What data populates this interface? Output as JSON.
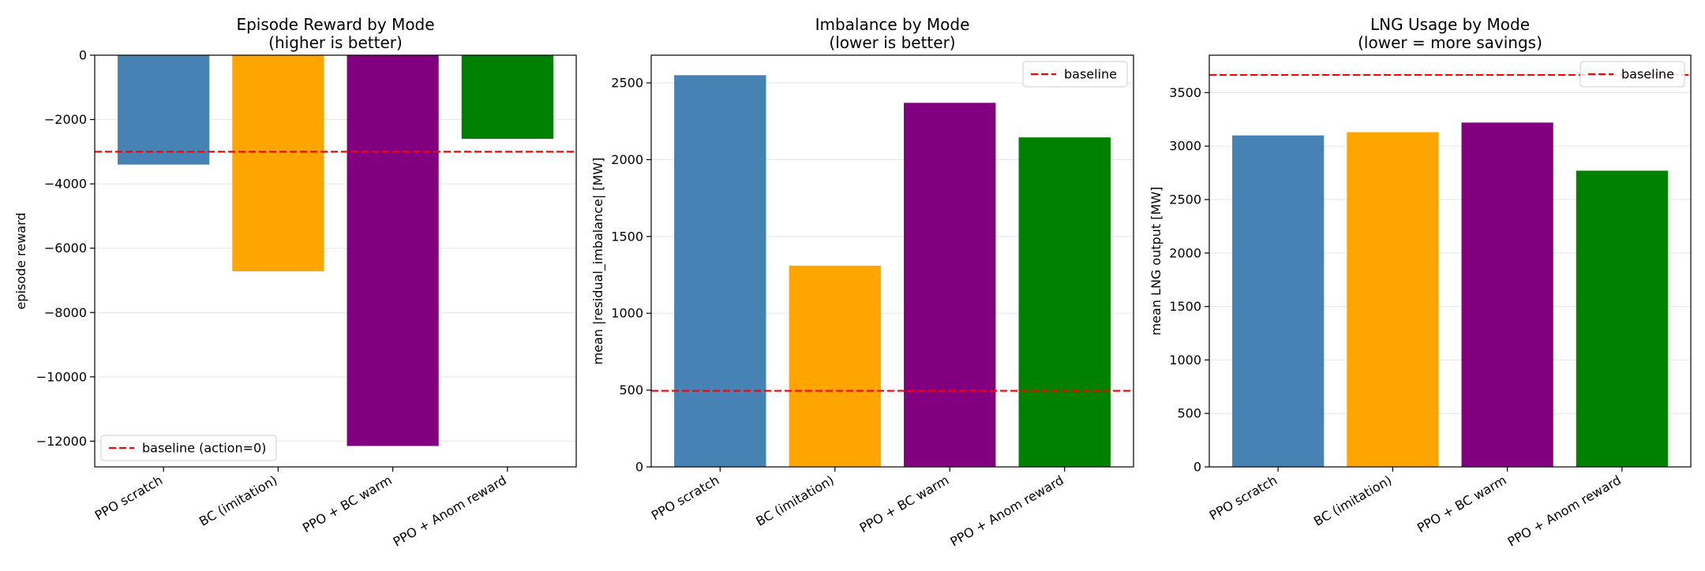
{
  "chart_data": [
    {
      "type": "bar",
      "title": "Episode Reward by Mode",
      "subtitle": "(higher is better)",
      "xlabel": "",
      "ylabel": "episode reward",
      "categories": [
        "PPO scratch",
        "BC (imitation)",
        "PPO + BC warm",
        "PPO + Anom reward"
      ],
      "values": [
        -3400,
        -6720,
        -12150,
        -2600
      ],
      "colors": [
        "#4682b4",
        "#ffa500",
        "#800080",
        "#008000"
      ],
      "ylim": [
        -12800,
        0
      ],
      "yticks": [
        0,
        -2000,
        -4000,
        -6000,
        -8000,
        -10000,
        -12000
      ],
      "ytick_labels": [
        "0",
        "−2000",
        "−4000",
        "−6000",
        "−8000",
        "−10000",
        "−12000"
      ],
      "baseline": {
        "value": -3000,
        "label": "baseline (action=0)",
        "color": "#ff0000"
      },
      "grid": "y",
      "legend_position": "lower-left"
    },
    {
      "type": "bar",
      "title": "Imbalance by Mode",
      "subtitle": "(lower is better)",
      "xlabel": "",
      "ylabel": "mean |residual_imbalance| [MW]",
      "categories": [
        "PPO scratch",
        "BC (imitation)",
        "PPO + BC warm",
        "PPO + Anom reward"
      ],
      "values": [
        2550,
        1310,
        2370,
        2145
      ],
      "colors": [
        "#4682b4",
        "#ffa500",
        "#800080",
        "#008000"
      ],
      "ylim": [
        0,
        2680
      ],
      "yticks": [
        0,
        500,
        1000,
        1500,
        2000,
        2500
      ],
      "ytick_labels": [
        "0",
        "500",
        "1000",
        "1500",
        "2000",
        "2500"
      ],
      "baseline": {
        "value": 495,
        "label": "baseline",
        "color": "#ff0000"
      },
      "grid": "y",
      "legend_position": "top-right"
    },
    {
      "type": "bar",
      "title": "LNG Usage by Mode",
      "subtitle": "(lower = more savings)",
      "xlabel": "",
      "ylabel": "mean LNG output [MW]",
      "categories": [
        "PPO scratch",
        "BC (imitation)",
        "PPO + BC warm",
        "PPO + Anom reward"
      ],
      "values": [
        3100,
        3130,
        3220,
        2770
      ],
      "colors": [
        "#4682b4",
        "#ffa500",
        "#800080",
        "#008000"
      ],
      "ylim": [
        0,
        3850
      ],
      "yticks": [
        0,
        500,
        1000,
        1500,
        2000,
        2500,
        3000,
        3500
      ],
      "ytick_labels": [
        "0",
        "500",
        "1000",
        "1500",
        "2000",
        "2500",
        "3000",
        "3500"
      ],
      "baseline": {
        "value": 3665,
        "label": "baseline",
        "color": "#ff0000"
      },
      "grid": "y",
      "legend_position": "top-right"
    }
  ]
}
